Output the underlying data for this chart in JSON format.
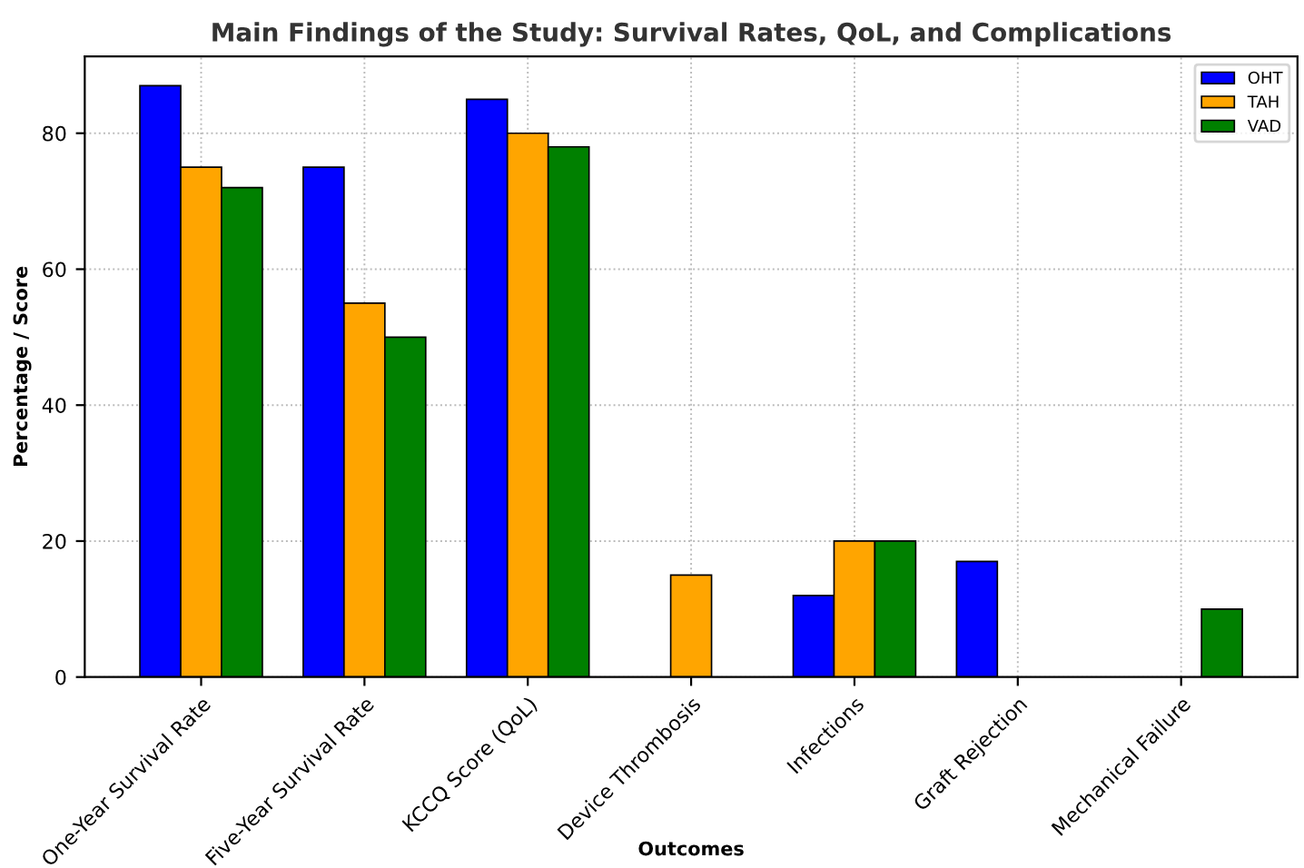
{
  "chart_data": {
    "type": "bar",
    "title": "Main Findings of the Study: Survival Rates, QoL, and Complications",
    "xlabel": "Outcomes",
    "ylabel": "Percentage / Score",
    "categories": [
      "One-Year Survival Rate",
      "Five-Year Survival Rate",
      "KCCQ Score (QoL)",
      "Device Thrombosis",
      "Infections",
      "Graft Rejection",
      "Mechanical Failure"
    ],
    "series": [
      {
        "name": "OHT",
        "color": "#0000ff",
        "values": [
          87,
          75,
          85,
          null,
          12,
          17,
          null
        ]
      },
      {
        "name": "TAH",
        "color": "#ffa500",
        "values": [
          75,
          55,
          80,
          15,
          20,
          null,
          null
        ]
      },
      {
        "name": "VAD",
        "color": "#008000",
        "values": [
          72,
          50,
          78,
          null,
          20,
          null,
          10
        ]
      }
    ],
    "ylim": [
      0,
      91.3
    ],
    "yticks": [
      0,
      20,
      40,
      60,
      80
    ],
    "grid": true,
    "legend": "top right"
  }
}
